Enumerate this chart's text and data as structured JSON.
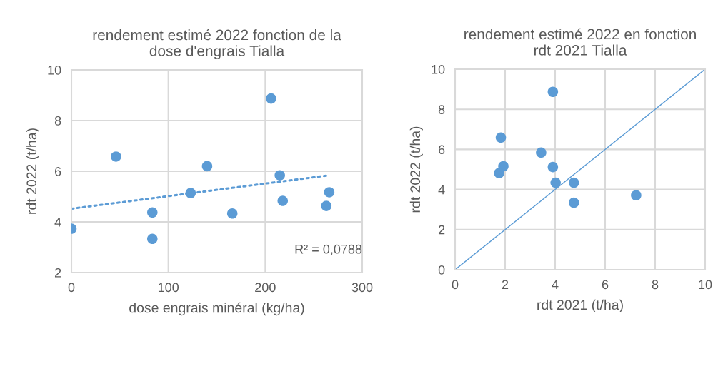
{
  "chart_data": [
    {
      "type": "scatter",
      "title": "rendement estimé 2022 fonction de la\ndose d'engrais Tialla",
      "xlabel": "dose engrais minéral (kg/ha)",
      "ylabel": "rdt 2022 (t/ha)",
      "xlim": [
        0,
        300
      ],
      "xticks": [
        0,
        100,
        200,
        300
      ],
      "ylim": [
        2,
        10
      ],
      "yticks": [
        2,
        4,
        6,
        8,
        10
      ],
      "grid": true,
      "series": [
        {
          "marker": "circle",
          "color": "#5b9bd5",
          "x": [
            0,
            46,
            83.5,
            83.5,
            123,
            140,
            166,
            206,
            215,
            218,
            263,
            266
          ],
          "values": [
            3.73,
            6.58,
            4.37,
            3.33,
            5.14,
            6.2,
            4.33,
            8.87,
            5.84,
            4.83,
            4.63,
            5.17
          ]
        },
        {
          "type": "line",
          "color": "#5b9bd5",
          "line_style": "dotted",
          "x": [
            0,
            264
          ],
          "values": [
            4.52,
            5.83
          ]
        }
      ],
      "annotations": [
        "R² = 0,0788"
      ]
    },
    {
      "type": "scatter",
      "title": "rendement estimé 2022 en fonction\nrdt 2021 Tialla",
      "xlabel": "rdt 2021 (t/ha)",
      "ylabel": "rdt 2022 (t/ha)",
      "xlim": [
        0,
        10
      ],
      "xticks": [
        0,
        2,
        4,
        6,
        8,
        10
      ],
      "ylim": [
        0,
        10
      ],
      "yticks": [
        0,
        2,
        4,
        6,
        8,
        10
      ],
      "grid": true,
      "series": [
        {
          "marker": "circle",
          "color": "#5b9bd5",
          "x": [
            3.91,
            1.83,
            3.44,
            1.93,
            1.76,
            3.91,
            4.02,
            4.75,
            4.75,
            7.24
          ],
          "values": [
            8.87,
            6.59,
            5.84,
            5.16,
            4.82,
            5.12,
            4.34,
            4.34,
            3.34,
            3.71
          ]
        },
        {
          "type": "line",
          "color": "#5b9bd5",
          "line_style": "solid",
          "x": [
            0,
            10
          ],
          "values": [
            0,
            10
          ]
        }
      ]
    }
  ]
}
